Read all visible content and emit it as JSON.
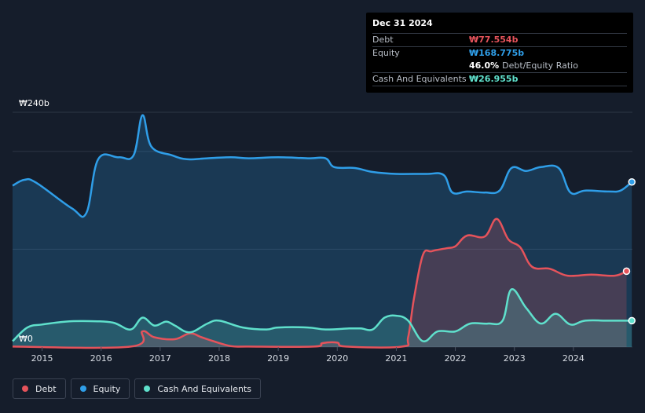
{
  "tooltip": {
    "date": "Dec 31 2024",
    "rows": [
      {
        "label": "Debt",
        "value": "₩77.554b",
        "color": "#e5535b"
      },
      {
        "label": "Equity",
        "value": "₩168.775b",
        "color": "#2f9ee8"
      },
      {
        "label": "",
        "value": "46.0%",
        "extra": "Debt/Equity Ratio",
        "color": "#ffffff"
      },
      {
        "label": "Cash And Equivalents",
        "value": "₩26.955b",
        "color": "#5fe0cc"
      }
    ]
  },
  "legend": [
    {
      "label": "Debt",
      "color": "#e5535b"
    },
    {
      "label": "Equity",
      "color": "#2f9ee8"
    },
    {
      "label": "Cash And Equivalents",
      "color": "#5fe0cc"
    }
  ],
  "chart_data": {
    "type": "area",
    "y_top_label": "₩240b",
    "y_bottom_label": "₩0",
    "ylim": [
      0,
      240
    ],
    "xlim": [
      2014.5,
      2025.0
    ],
    "x_ticks": [
      2015,
      2016,
      2017,
      2018,
      2019,
      2020,
      2021,
      2022,
      2023,
      2024
    ],
    "x_tick_labels": [
      "2015",
      "2016",
      "2017",
      "2018",
      "2019",
      "2020",
      "2021",
      "2022",
      "2023",
      "2024"
    ],
    "grid": true,
    "legend_position": "bottom-left",
    "unit": "KRW billions",
    "series": [
      {
        "name": "Debt",
        "color": "#e5535b",
        "points": [
          [
            2014.5,
            0.5
          ],
          [
            2016.5,
            0.5
          ],
          [
            2016.7,
            16
          ],
          [
            2016.9,
            10
          ],
          [
            2017.25,
            8
          ],
          [
            2017.5,
            14
          ],
          [
            2017.7,
            10
          ],
          [
            2017.9,
            6
          ],
          [
            2018.2,
            1
          ],
          [
            2018.5,
            0.5
          ],
          [
            2019.6,
            0.5
          ],
          [
            2019.75,
            4
          ],
          [
            2020.0,
            4.5
          ],
          [
            2020.15,
            0.5
          ],
          [
            2021.1,
            0.5
          ],
          [
            2021.2,
            10
          ],
          [
            2021.3,
            50
          ],
          [
            2021.45,
            94
          ],
          [
            2021.6,
            98
          ],
          [
            2021.85,
            101
          ],
          [
            2022.0,
            103
          ],
          [
            2022.2,
            114
          ],
          [
            2022.5,
            113
          ],
          [
            2022.7,
            131
          ],
          [
            2022.9,
            110
          ],
          [
            2023.1,
            102
          ],
          [
            2023.3,
            82
          ],
          [
            2023.6,
            80
          ],
          [
            2023.9,
            73
          ],
          [
            2024.3,
            74
          ],
          [
            2024.7,
            73
          ],
          [
            2024.9,
            77.554
          ]
        ]
      },
      {
        "name": "Equity",
        "color": "#2f9ee8",
        "points": [
          [
            2014.5,
            165
          ],
          [
            2014.7,
            171
          ],
          [
            2014.9,
            168
          ],
          [
            2015.5,
            142
          ],
          [
            2015.75,
            137
          ],
          [
            2015.95,
            192
          ],
          [
            2016.3,
            194
          ],
          [
            2016.55,
            196
          ],
          [
            2016.7,
            237
          ],
          [
            2016.85,
            205
          ],
          [
            2017.2,
            196
          ],
          [
            2017.45,
            192
          ],
          [
            2017.8,
            193
          ],
          [
            2018.2,
            194
          ],
          [
            2018.5,
            193
          ],
          [
            2019.0,
            194
          ],
          [
            2019.5,
            193
          ],
          [
            2019.8,
            193
          ],
          [
            2019.95,
            184
          ],
          [
            2020.3,
            183
          ],
          [
            2020.6,
            179
          ],
          [
            2021.0,
            177
          ],
          [
            2021.5,
            177
          ],
          [
            2021.8,
            176
          ],
          [
            2021.95,
            158
          ],
          [
            2022.2,
            159
          ],
          [
            2022.5,
            158
          ],
          [
            2022.75,
            160
          ],
          [
            2022.95,
            183
          ],
          [
            2023.2,
            180
          ],
          [
            2023.45,
            184
          ],
          [
            2023.75,
            183
          ],
          [
            2023.95,
            158
          ],
          [
            2024.2,
            160
          ],
          [
            2024.6,
            159
          ],
          [
            2024.8,
            160
          ],
          [
            2024.99,
            168.775
          ]
        ]
      },
      {
        "name": "Cash And Equivalents",
        "color": "#5fe0cc",
        "points": [
          [
            2014.5,
            6
          ],
          [
            2014.75,
            20
          ],
          [
            2015.0,
            23
          ],
          [
            2015.4,
            26
          ],
          [
            2015.8,
            26.5
          ],
          [
            2016.2,
            25
          ],
          [
            2016.5,
            18
          ],
          [
            2016.7,
            30
          ],
          [
            2016.9,
            22
          ],
          [
            2017.1,
            26
          ],
          [
            2017.25,
            22
          ],
          [
            2017.5,
            15
          ],
          [
            2017.8,
            24
          ],
          [
            2018.0,
            27
          ],
          [
            2018.4,
            20
          ],
          [
            2018.8,
            18
          ],
          [
            2019.0,
            20
          ],
          [
            2019.5,
            20
          ],
          [
            2019.8,
            18
          ],
          [
            2020.2,
            19
          ],
          [
            2020.4,
            19
          ],
          [
            2020.6,
            18
          ],
          [
            2020.8,
            30
          ],
          [
            2021.0,
            32
          ],
          [
            2021.2,
            27
          ],
          [
            2021.45,
            6
          ],
          [
            2021.7,
            16
          ],
          [
            2022.0,
            16
          ],
          [
            2022.25,
            24
          ],
          [
            2022.55,
            24
          ],
          [
            2022.8,
            27
          ],
          [
            2022.95,
            59
          ],
          [
            2023.2,
            40
          ],
          [
            2023.45,
            24
          ],
          [
            2023.7,
            34
          ],
          [
            2023.95,
            23
          ],
          [
            2024.2,
            27
          ],
          [
            2024.6,
            27
          ],
          [
            2024.99,
            26.955
          ]
        ]
      }
    ]
  }
}
